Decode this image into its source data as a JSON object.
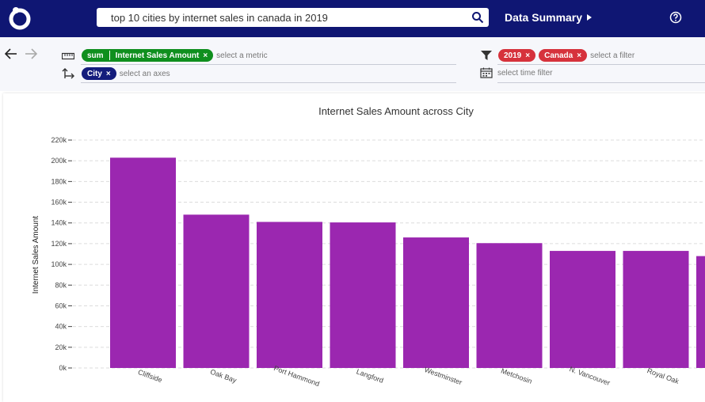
{
  "header": {
    "search_text": "top 10 cities by internet sales in canada in 2019",
    "summary_label": "Data Summary",
    "colors": {
      "bar": "#0f1673"
    }
  },
  "toolbar": {
    "metric": {
      "agg": "sum",
      "field": "Internet Sales Amount",
      "placeholder": "select a metric"
    },
    "axes": {
      "field": "City",
      "placeholder": "select an axes"
    },
    "filters": [
      {
        "label": "2019"
      },
      {
        "label": "Canada"
      }
    ],
    "filter_placeholder": "select a filter",
    "time_placeholder": "select time filter"
  },
  "chart_data": {
    "type": "bar",
    "title": "Internet Sales Amount across City",
    "xlabel": "",
    "ylabel": "Internet Sales Amount",
    "categories": [
      "Cliffside",
      "Oak Bay",
      "Port Hammond",
      "Langford",
      "Westminster",
      "Metchosin",
      "N. Vancouver",
      "Royal Oak",
      ""
    ],
    "values": [
      203000,
      148000,
      141000,
      140500,
      126000,
      120500,
      113000,
      113000,
      108000
    ],
    "ylim": [
      0,
      220000
    ],
    "yticks": [
      0,
      20000,
      40000,
      60000,
      80000,
      100000,
      120000,
      140000,
      160000,
      180000,
      200000,
      220000
    ],
    "ytick_labels": [
      "0k",
      "20k",
      "40k",
      "60k",
      "80k",
      "100k",
      "120k",
      "140k",
      "160k",
      "180k",
      "200k",
      "220k"
    ],
    "bar_color": "#9b27b0",
    "grid": true
  }
}
